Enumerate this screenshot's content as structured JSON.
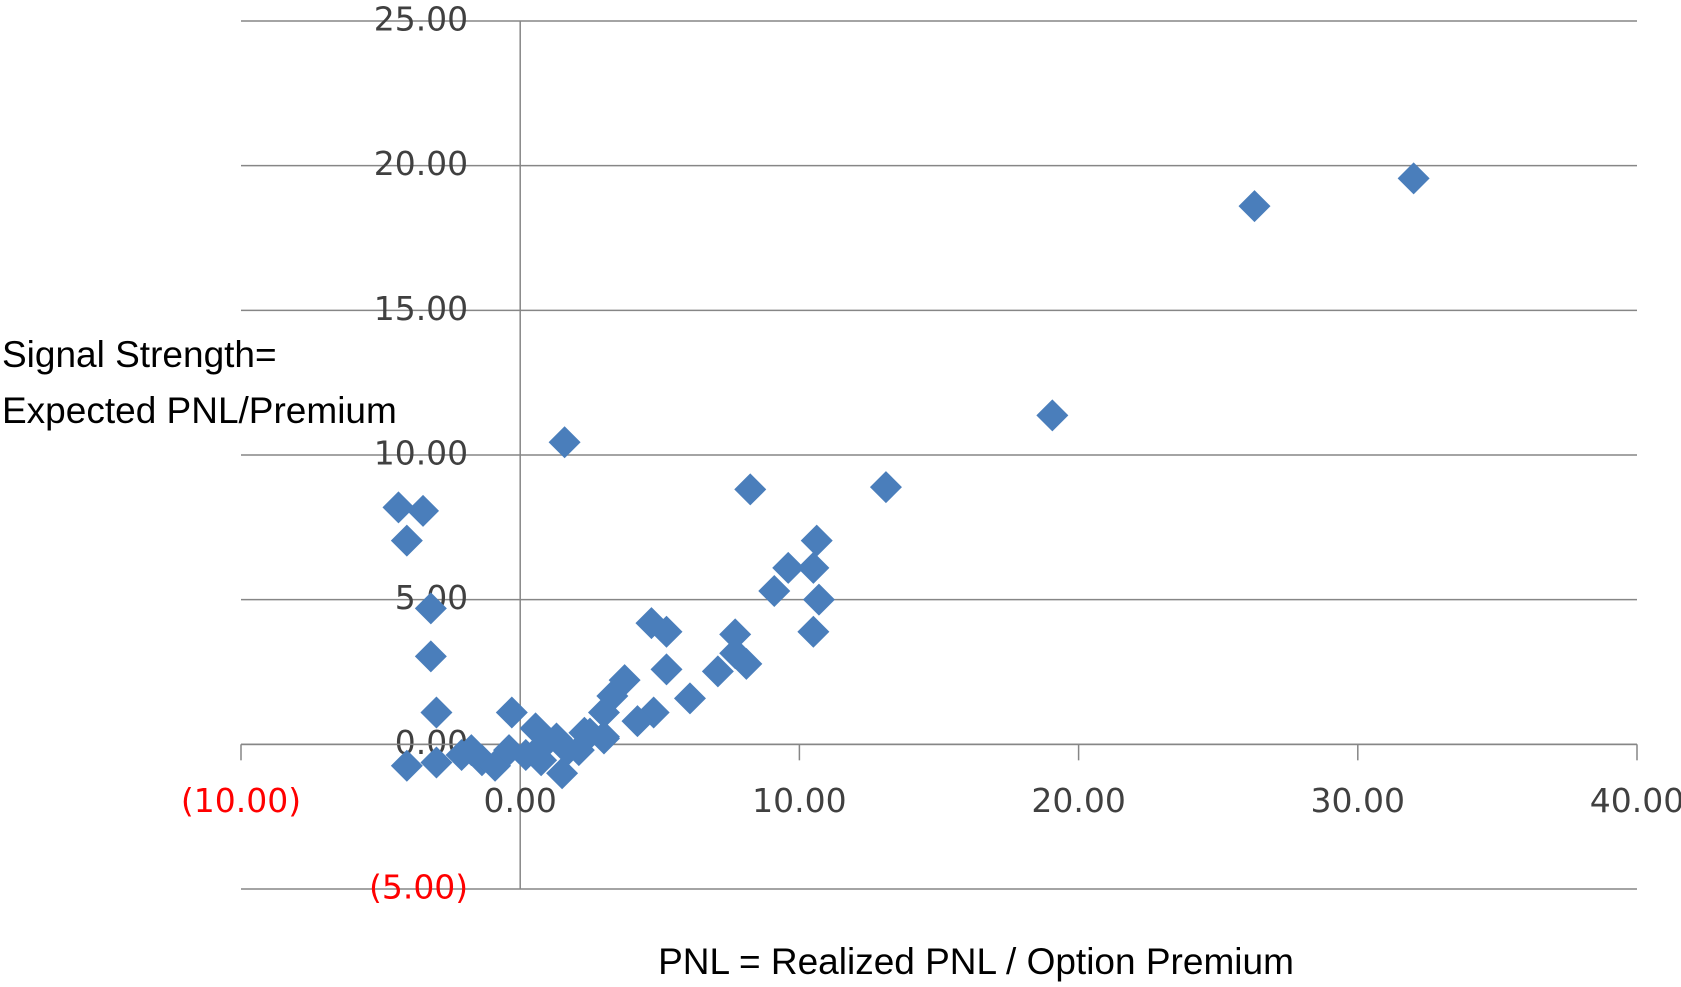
{
  "chart_data": {
    "type": "scatter",
    "x_label": "PNL = Realized PNL / Option Premium",
    "y_label": [
      "Signal Strength=",
      "Expected PNL/Premium"
    ],
    "color": "#4a7ebb",
    "label_color": "#404040",
    "negative_label_color": "#ff0000",
    "axis_color": "#868686",
    "grid": true,
    "xlim": [
      -10,
      40
    ],
    "ylim": [
      -5,
      25
    ],
    "xticks": [
      {
        "value": -10,
        "label": "(10.00)"
      },
      {
        "value": 0,
        "label": "0.00"
      },
      {
        "value": 10,
        "label": "10.00"
      },
      {
        "value": 20,
        "label": "20.00"
      },
      {
        "value": 30,
        "label": "30.00"
      },
      {
        "value": 40,
        "label": "40.00"
      }
    ],
    "yticks": [
      {
        "value": -5,
        "label": "(5.00)"
      },
      {
        "value": 0,
        "label": "0.00"
      },
      {
        "value": 5,
        "label": "5.00"
      },
      {
        "value": 10,
        "label": "10.00"
      },
      {
        "value": 15,
        "label": "15.00"
      },
      {
        "value": 20,
        "label": "20.00"
      },
      {
        "value": 25,
        "label": "25.00"
      }
    ],
    "x": [
      32.0,
      26.3,
      19.06,
      1.59,
      8.24,
      13.1,
      -4.36,
      -3.48,
      -4.06,
      10.62,
      9.6,
      10.5,
      9.1,
      10.7,
      -3.2,
      4.7,
      5.24,
      7.7,
      10.5,
      -3.2,
      7.7,
      8.1,
      5.24,
      7.08,
      6.08,
      3.74,
      3.3,
      3.0,
      4.78,
      4.2,
      -3.0,
      -0.3,
      0.55,
      1.3,
      2.3,
      3.0,
      1.7,
      1.5,
      -4.06,
      -3.0,
      -2.1,
      -1.37,
      -0.9,
      0.2,
      0.75,
      2.1,
      3.0,
      -1.75,
      -0.4,
      0.75,
      2.5
    ],
    "y": [
      19.56,
      18.6,
      11.37,
      10.44,
      8.81,
      8.89,
      8.19,
      8.07,
      7.04,
      7.04,
      6.1,
      6.1,
      5.3,
      5.0,
      4.7,
      4.19,
      3.89,
      3.8,
      3.89,
      3.04,
      3.15,
      2.78,
      2.59,
      2.52,
      1.59,
      2.22,
      1.67,
      1.1,
      1.1,
      0.8,
      1.1,
      1.1,
      0.55,
      0.2,
      0.4,
      0.2,
      -0.2,
      -1.0,
      -0.74,
      -0.63,
      -0.37,
      -0.55,
      -0.74,
      -0.37,
      -0.1,
      -0.2,
      0.26,
      -0.2,
      -0.2,
      -0.55,
      0.37
    ]
  }
}
